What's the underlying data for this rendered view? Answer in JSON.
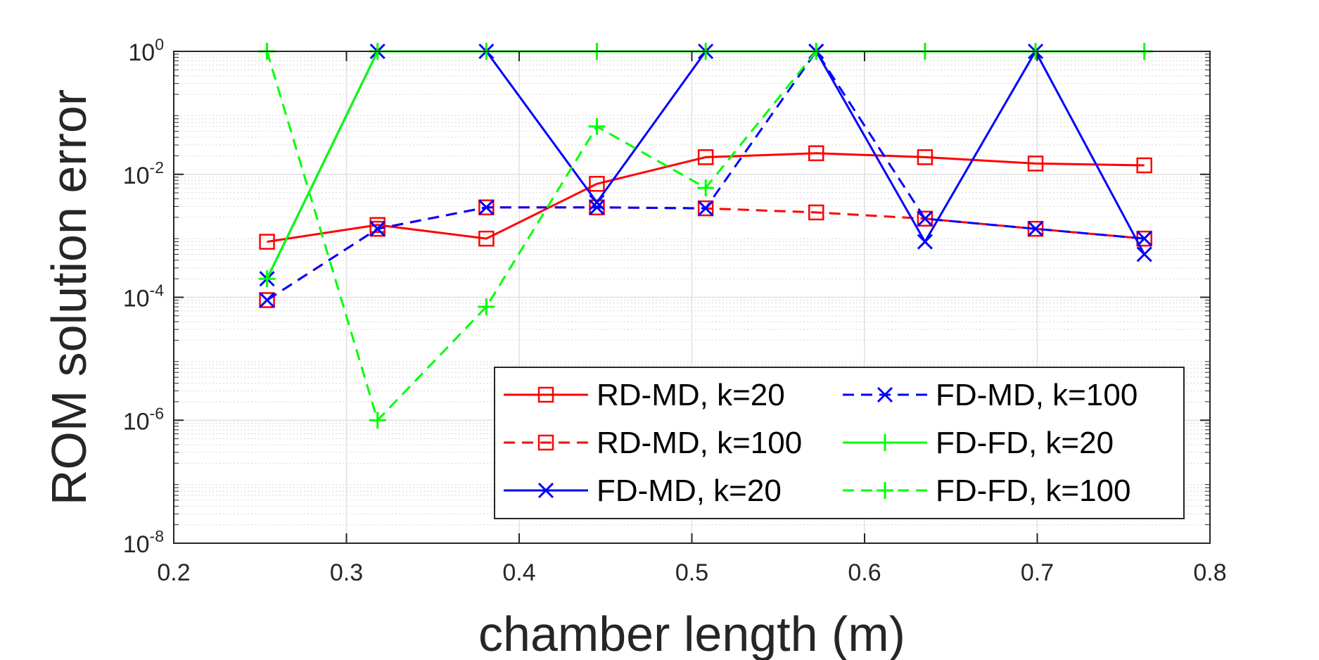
{
  "chart_data": {
    "type": "line",
    "xlabel": "chamber length (m)",
    "ylabel": "ROM solution error",
    "xlim": [
      0.2,
      0.8
    ],
    "ylim": [
      1e-08,
      1
    ],
    "yscale": "log",
    "grid": true,
    "minor_grid": true,
    "legend_placement": "bottom-right",
    "x_ticks": [
      "0.2",
      "0.3",
      "0.4",
      "0.5",
      "0.6",
      "0.7",
      "0.8"
    ],
    "y_ticks": [
      {
        "base": "10",
        "exp": "0",
        "value": 1
      },
      {
        "base": "10",
        "exp": "-2",
        "value": 0.01
      },
      {
        "base": "10",
        "exp": "-4",
        "value": 0.0001
      },
      {
        "base": "10",
        "exp": "-6",
        "value": 1e-06
      },
      {
        "base": "10",
        "exp": "-8",
        "value": 1e-08
      }
    ],
    "x": [
      0.254,
      0.318,
      0.381,
      0.445,
      0.508,
      0.572,
      0.635,
      0.699,
      0.762
    ],
    "series": [
      {
        "name": "RD-MD, k=20",
        "color": "#ff0000",
        "dash": "solid",
        "marker": "square",
        "values": [
          0.0008,
          0.0015,
          0.0009,
          0.007,
          0.019,
          0.022,
          0.019,
          0.015,
          0.014
        ]
      },
      {
        "name": "RD-MD, k=100",
        "color": "#ff0000",
        "dash": "dashed",
        "marker": "square",
        "values": [
          9e-05,
          0.0013,
          0.0029,
          0.0029,
          0.0028,
          0.0024,
          0.0019,
          0.0013,
          0.0009
        ]
      },
      {
        "name": "FD-MD, k=20",
        "color": "#0000ff",
        "dash": "solid",
        "marker": "x",
        "values": [
          0.0002,
          1,
          1,
          0.0035,
          1,
          1,
          0.0008,
          1,
          0.0005
        ]
      },
      {
        "name": "FD-MD, k=100",
        "color": "#0000ff",
        "dash": "dashed",
        "marker": "x",
        "values": [
          9e-05,
          0.0013,
          0.0029,
          0.0029,
          0.0028,
          1,
          0.0019,
          0.0013,
          0.0009
        ]
      },
      {
        "name": "FD-FD, k=20",
        "color": "#00ff00",
        "dash": "solid",
        "marker": "plus",
        "values": [
          0.0002,
          1,
          1,
          1,
          1,
          1,
          1,
          1,
          1
        ]
      },
      {
        "name": "FD-FD, k=100",
        "color": "#00ff00",
        "dash": "dashed",
        "marker": "plus",
        "values": [
          1,
          1e-06,
          7e-05,
          0.06,
          0.006,
          1,
          null,
          null,
          null
        ]
      }
    ]
  }
}
